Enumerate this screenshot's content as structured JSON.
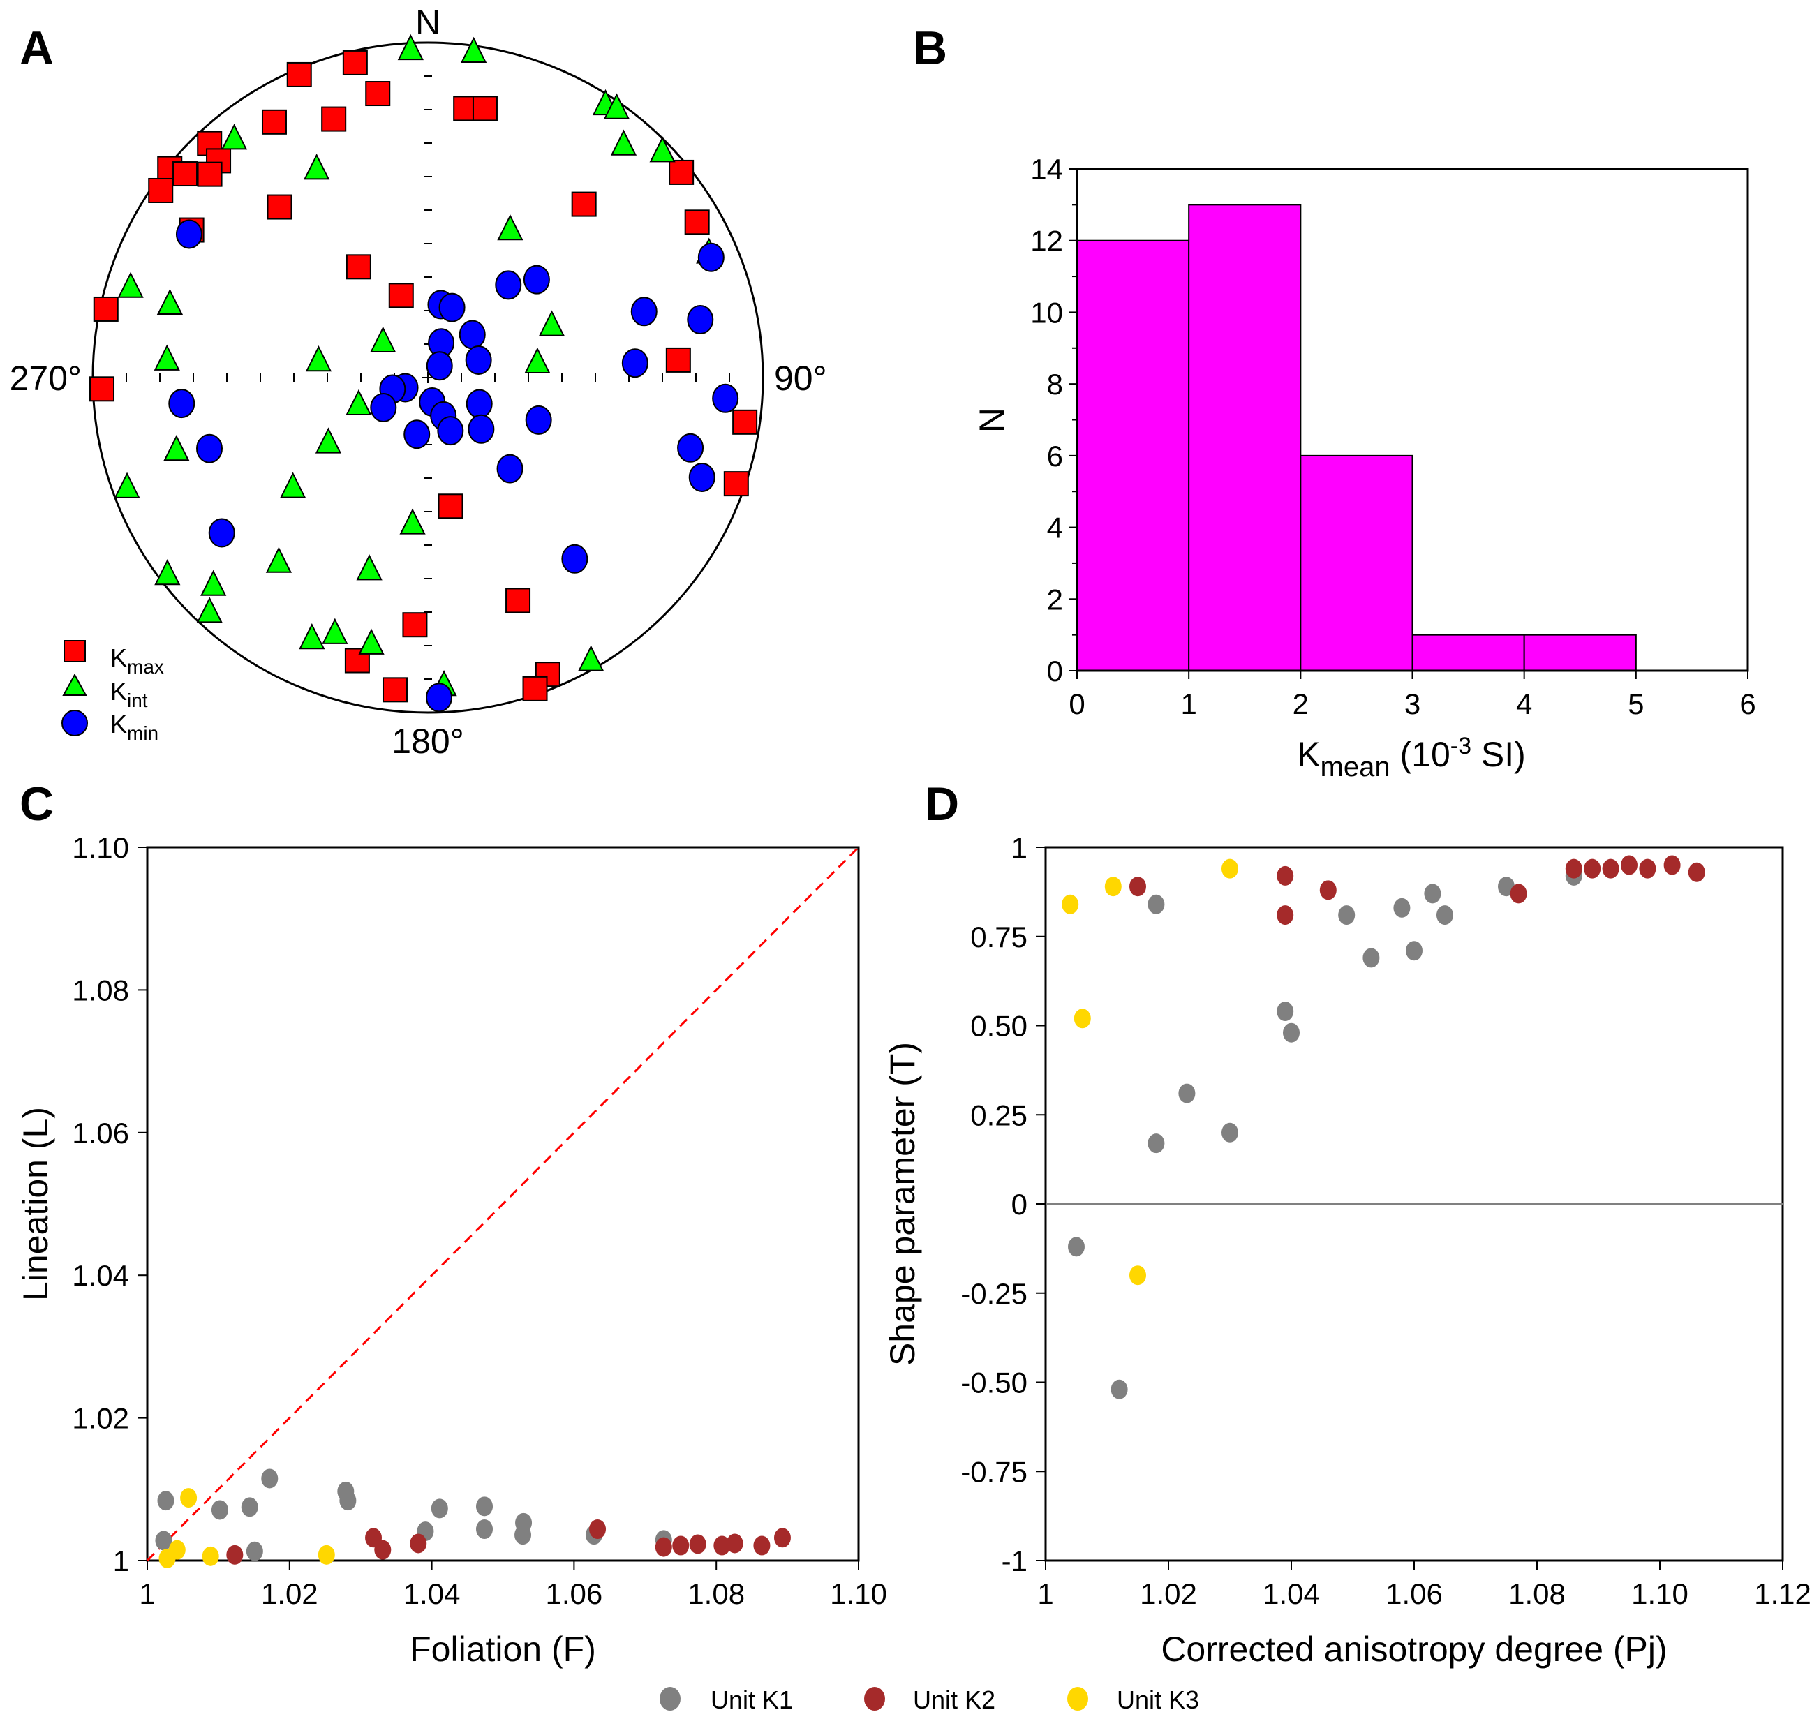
{
  "figure": {
    "panel_labels": [
      "A",
      "B",
      "C",
      "D"
    ],
    "bottom_legend": [
      {
        "label": "Unit K1",
        "color": "#808080"
      },
      {
        "label": "Unit K2",
        "color": "#a52a2a"
      },
      {
        "label": "Unit K3",
        "color": "#ffd700"
      }
    ]
  },
  "chart_data": [
    {
      "panel": "A",
      "type": "scatter",
      "subtype": "stereonet-equal-area-lower-hemisphere",
      "title": "",
      "direction_labels": {
        "north": "N",
        "east": "90°",
        "south": "180°",
        "west": "270°"
      },
      "legend_placement": "bottom-left",
      "series": [
        {
          "name": "Kmax",
          "label_main": "K",
          "label_sub": "max",
          "marker": "square",
          "color": "#ff0000",
          "points": [
            [
              347,
              4
            ],
            [
              337,
              2
            ],
            [
              350,
              15
            ],
            [
              340,
              19
            ],
            [
              329,
              12
            ],
            [
              317,
              5
            ],
            [
              316,
              11
            ],
            [
              309,
              1
            ],
            [
              310,
              6
            ],
            [
              313,
              12
            ],
            [
              305,
              3
            ],
            [
              319,
              33
            ],
            [
              8,
              20
            ],
            [
              12,
              19
            ],
            [
              302,
              18
            ],
            [
              42,
              31
            ],
            [
              328,
              58
            ],
            [
              342,
              69
            ],
            [
              282,
              2
            ],
            [
              51,
              3
            ],
            [
              60,
              8
            ],
            [
              86,
              26
            ],
            [
              268,
              3
            ],
            [
              98,
              5
            ],
            [
              109,
              3
            ],
            [
              170,
              58
            ],
            [
              158,
              29
            ],
            [
              183,
              27
            ],
            [
              194,
              14
            ],
            [
              186,
              7
            ],
            [
              158,
              5
            ],
            [
              161,
              2
            ]
          ]
        },
        {
          "name": "Kint",
          "label_main": "K",
          "label_sub": "int",
          "marker": "triangle",
          "color": "#00ff00",
          "points": [
            [
              357,
              2
            ],
            [
              8,
              2
            ],
            [
              321,
              9
            ],
            [
              332,
              30
            ],
            [
              33,
              3
            ],
            [
              35,
              2
            ],
            [
              40,
              10
            ],
            [
              46,
              3
            ],
            [
              29,
              48
            ],
            [
              66,
              9
            ],
            [
              287,
              8
            ],
            [
              286,
              21
            ],
            [
              274,
              23
            ],
            [
              279,
              63
            ],
            [
              309,
              76
            ],
            [
              67,
              57
            ],
            [
              82,
              63
            ],
            [
              249,
              72
            ],
            [
              254,
              23
            ],
            [
              237,
              61
            ],
            [
              250,
              5
            ],
            [
              231,
              47
            ],
            [
              186,
              54
            ],
            [
              219,
              30
            ],
            [
              197,
              40
            ],
            [
              233,
              3
            ],
            [
              226,
              12
            ],
            [
              223,
              5
            ],
            [
              204,
              16
            ],
            [
              200,
              20
            ],
            [
              192,
              20
            ],
            [
              150,
              3
            ],
            [
              177,
              9
            ]
          ]
        },
        {
          "name": "Kmin",
          "label_main": "K",
          "label_sub": "min",
          "marker": "circle",
          "color": "#0000ff",
          "points": [
            [
              301,
              18
            ],
            [
              67,
              9
            ],
            [
              10,
              72
            ],
            [
              19,
              72
            ],
            [
              41,
              60
            ],
            [
              48,
              54
            ],
            [
              73,
              33
            ],
            [
              78,
              18
            ],
            [
              46,
              75
            ],
            [
              21,
              81
            ],
            [
              45,
              86
            ],
            [
              71,
              77
            ],
            [
              86,
              38
            ],
            [
              246,
              84
            ],
            [
              252,
              81
            ],
            [
              236,
              77
            ],
            [
              170,
              84
            ],
            [
              158,
              80
            ],
            [
              117,
              76
            ],
            [
              157,
              76
            ],
            [
              134,
              72
            ],
            [
              191,
              76
            ],
            [
              111,
              61
            ],
            [
              264,
              27
            ],
            [
              94,
              12
            ],
            [
              252,
              32
            ],
            [
              105,
              20
            ],
            [
              110,
              14
            ],
            [
              138,
              60
            ],
            [
              233,
              24
            ],
            [
              141,
              31
            ],
            [
              178,
              5
            ]
          ]
        }
      ],
      "point_format": [
        "declination_deg",
        "inclination_deg"
      ]
    },
    {
      "panel": "B",
      "type": "bar",
      "subtype": "histogram",
      "title": "",
      "bins": [
        [
          0,
          1
        ],
        [
          1,
          2
        ],
        [
          2,
          3
        ],
        [
          3,
          4
        ],
        [
          4,
          5
        ],
        [
          5,
          6
        ]
      ],
      "values": [
        12,
        13,
        6,
        1,
        1,
        0
      ],
      "bar_color": "#ff00ff",
      "xlabel_main": "K",
      "xlabel_sub": "mean",
      "xlabel_rest_pre": " (10",
      "xlabel_sup": "-3",
      "xlabel_rest_post": " SI)",
      "ylabel": "N",
      "xlim": [
        0,
        6
      ],
      "ylim": [
        0,
        14
      ],
      "xticks": [
        "0",
        "1",
        "2",
        "3",
        "4",
        "5",
        "6"
      ],
      "yticks": [
        "0",
        "2",
        "4",
        "6",
        "8",
        "10",
        "12",
        "14"
      ],
      "grid": false
    },
    {
      "panel": "C",
      "type": "scatter",
      "title": "",
      "xlabel": "Foliation (F)",
      "ylabel": "Lineation (L)",
      "xlim": [
        1.0,
        1.1
      ],
      "ylim": [
        1.0,
        1.1
      ],
      "xticks": [
        [
          "1",
          1.0
        ],
        [
          "1.02",
          1.02
        ],
        [
          "1.04",
          1.04
        ],
        [
          "1.06",
          1.06
        ],
        [
          "1.08",
          1.08
        ],
        [
          "1.10",
          1.1
        ]
      ],
      "yticks": [
        [
          "1",
          1.0
        ],
        [
          "1.02",
          1.02
        ],
        [
          "1.04",
          1.04
        ],
        [
          "1.06",
          1.06
        ],
        [
          "1.08",
          1.08
        ],
        [
          "1.10",
          1.1
        ]
      ],
      "reference_line": {
        "from": [
          1.0,
          1.0
        ],
        "to": [
          1.1,
          1.1
        ],
        "style": "dashed",
        "color": "#ff0000"
      },
      "grid": false,
      "series": [
        {
          "name": "Unit K1",
          "color": "#808080",
          "points": [
            [
              1.0026,
              1.0084
            ],
            [
              1.0023,
              1.0028
            ],
            [
              1.0102,
              1.0071
            ],
            [
              1.0144,
              1.0075
            ],
            [
              1.0172,
              1.0115
            ],
            [
              1.0151,
              1.0013
            ],
            [
              1.0279,
              1.0097
            ],
            [
              1.0282,
              1.0084
            ],
            [
              1.0411,
              1.0073
            ],
            [
              1.0391,
              1.0041
            ],
            [
              1.0474,
              1.0076
            ],
            [
              1.0474,
              1.0044
            ],
            [
              1.0529,
              1.0053
            ],
            [
              1.0528,
              1.0036
            ],
            [
              1.0628,
              1.0036
            ],
            [
              1.0726,
              1.0029
            ]
          ]
        },
        {
          "name": "Unit K2",
          "color": "#a52a2a",
          "points": [
            [
              1.0123,
              1.0008
            ],
            [
              1.0318,
              1.0032
            ],
            [
              1.0331,
              1.0015
            ],
            [
              1.0381,
              1.0024
            ],
            [
              1.0633,
              1.0044
            ],
            [
              1.0726,
              1.0019
            ],
            [
              1.075,
              1.0021
            ],
            [
              1.0774,
              1.0023
            ],
            [
              1.0808,
              1.0021
            ],
            [
              1.0826,
              1.0024
            ],
            [
              1.0864,
              1.0021
            ],
            [
              1.0893,
              1.0032
            ]
          ]
        },
        {
          "name": "Unit K3",
          "color": "#ffd700",
          "points": [
            [
              1.0058,
              1.0088
            ],
            [
              1.0028,
              1.0003
            ],
            [
              1.0042,
              1.0015
            ],
            [
              1.0089,
              1.0006
            ],
            [
              1.0252,
              1.0008
            ]
          ]
        }
      ]
    },
    {
      "panel": "D",
      "type": "scatter",
      "title": "",
      "xlabel": "Corrected anisotropy degree (Pj)",
      "ylabel": "Shape parameter (T)",
      "xlim": [
        1.0,
        1.12
      ],
      "ylim": [
        -1,
        1
      ],
      "xticks": [
        [
          "1",
          1.0
        ],
        [
          "1.02",
          1.02
        ],
        [
          "1.04",
          1.04
        ],
        [
          "1.06",
          1.06
        ],
        [
          "1.08",
          1.08
        ],
        [
          "1.10",
          1.1
        ],
        [
          "1.12",
          1.12
        ]
      ],
      "yticks": [
        [
          "-1",
          -1
        ],
        [
          "-0.75",
          -0.75
        ],
        [
          "-0.50",
          -0.5
        ],
        [
          "-0.25",
          -0.25
        ],
        [
          "0",
          0
        ],
        [
          "0.25",
          0.25
        ],
        [
          "0.50",
          0.5
        ],
        [
          "0.75",
          0.75
        ],
        [
          "1",
          1
        ]
      ],
      "reference_line": {
        "y": 0,
        "color": "#808080"
      },
      "grid": false,
      "series": [
        {
          "name": "Unit K1",
          "color": "#808080",
          "points": [
            [
              1.018,
              0.84
            ],
            [
              1.005,
              -0.12
            ],
            [
              1.012,
              -0.52
            ],
            [
              1.018,
              0.17
            ],
            [
              1.023,
              0.31
            ],
            [
              1.03,
              0.2
            ],
            [
              1.039,
              0.54
            ],
            [
              1.04,
              0.48
            ],
            [
              1.049,
              0.81
            ],
            [
              1.053,
              0.69
            ],
            [
              1.058,
              0.83
            ],
            [
              1.06,
              0.71
            ],
            [
              1.063,
              0.87
            ],
            [
              1.065,
              0.81
            ],
            [
              1.075,
              0.89
            ],
            [
              1.086,
              0.92
            ]
          ]
        },
        {
          "name": "Unit K2",
          "color": "#a52a2a",
          "points": [
            [
              1.015,
              0.89
            ],
            [
              1.039,
              0.92
            ],
            [
              1.039,
              0.81
            ],
            [
              1.046,
              0.88
            ],
            [
              1.077,
              0.87
            ],
            [
              1.086,
              0.94
            ],
            [
              1.089,
              0.94
            ],
            [
              1.092,
              0.94
            ],
            [
              1.095,
              0.95
            ],
            [
              1.098,
              0.94
            ],
            [
              1.102,
              0.95
            ],
            [
              1.106,
              0.93
            ]
          ]
        },
        {
          "name": "Unit K3",
          "color": "#ffd700",
          "points": [
            [
              1.004,
              0.84
            ],
            [
              1.006,
              0.52
            ],
            [
              1.011,
              0.89
            ],
            [
              1.015,
              -0.2
            ],
            [
              1.03,
              0.94
            ]
          ]
        }
      ]
    }
  ]
}
